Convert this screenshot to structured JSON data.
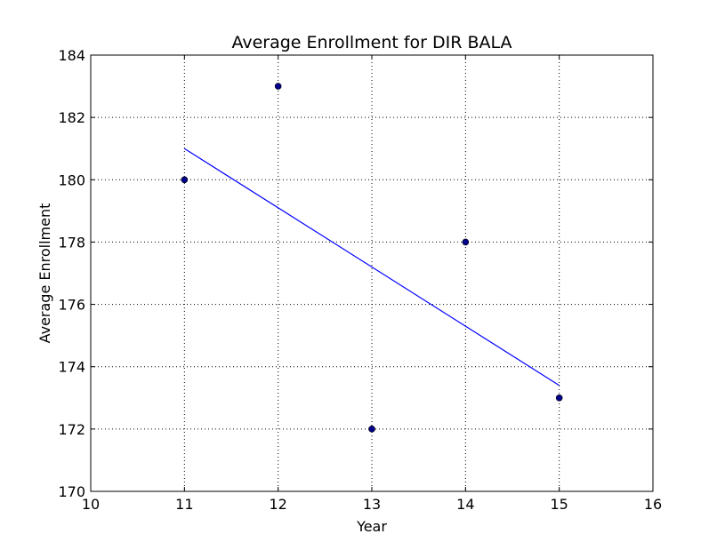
{
  "chart_data": {
    "type": "scatter",
    "title": "Average Enrollment for DIR BALA",
    "xlabel": "Year",
    "ylabel": "Average Enrollment",
    "xlim": [
      10,
      16
    ],
    "ylim": [
      170,
      184
    ],
    "xticks": [
      10,
      11,
      12,
      13,
      14,
      15,
      16
    ],
    "yticks": [
      170,
      172,
      174,
      176,
      178,
      180,
      182,
      184
    ],
    "grid": true,
    "series": [
      {
        "kind": "scatter",
        "color": "#00008b",
        "points": [
          {
            "x": 11,
            "y": 180
          },
          {
            "x": 12,
            "y": 183
          },
          {
            "x": 13,
            "y": 172
          },
          {
            "x": 14,
            "y": 178
          },
          {
            "x": 15,
            "y": 173
          }
        ]
      },
      {
        "kind": "line",
        "color": "#0000ff",
        "points": [
          {
            "x": 11,
            "y": 181.0
          },
          {
            "x": 15,
            "y": 173.4
          }
        ]
      }
    ]
  }
}
